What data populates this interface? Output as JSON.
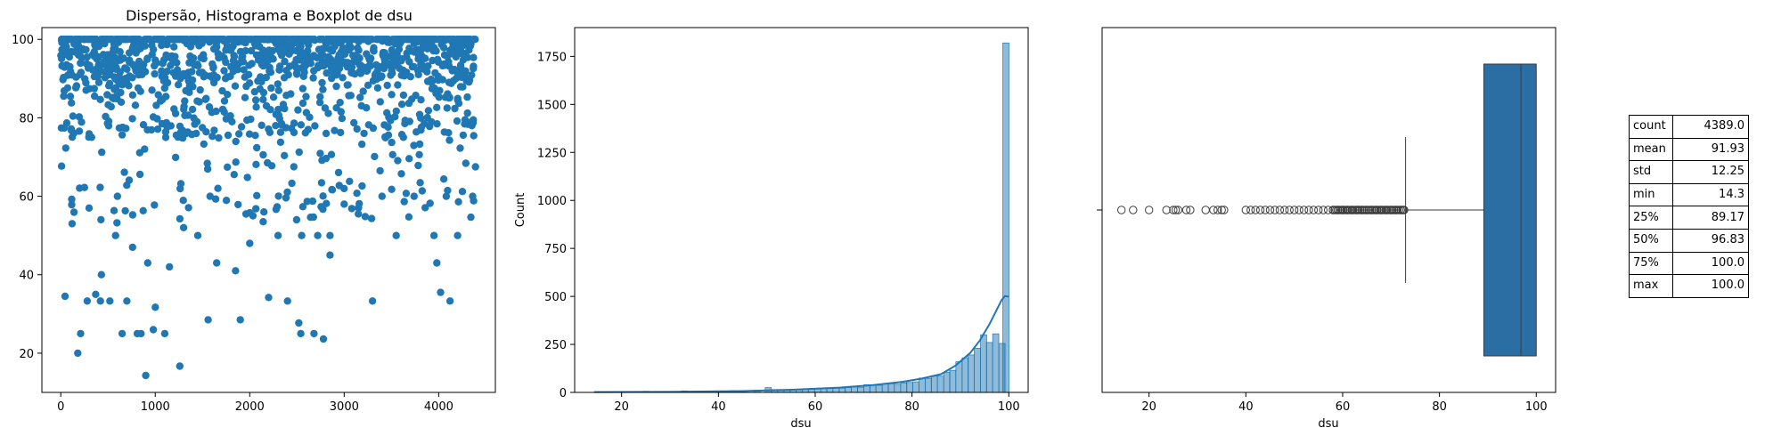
{
  "chart_data": [
    {
      "type": "scatter",
      "title": "Dispersão, Histograma e Boxplot de dsu",
      "xlabel": "",
      "ylabel": "",
      "xlim": [
        -200,
        4600
      ],
      "ylim": [
        10,
        103
      ],
      "xticks": [
        0,
        1000,
        2000,
        3000,
        4000
      ],
      "yticks": [
        20,
        40,
        60,
        80,
        100
      ],
      "color": "#1f77b4",
      "n_points": 4389,
      "value_range": [
        14.3,
        100.0
      ],
      "sample_points": [
        [
          45,
          34.5
        ],
        [
          180,
          20.0
        ],
        [
          210,
          25.0
        ],
        [
          280,
          33.3
        ],
        [
          370,
          35.0
        ],
        [
          420,
          33.3
        ],
        [
          520,
          33.3
        ],
        [
          650,
          25.0
        ],
        [
          700,
          33.3
        ],
        [
          810,
          25.0
        ],
        [
          850,
          25.0
        ],
        [
          900,
          14.3
        ],
        [
          980,
          26.0
        ],
        [
          1000,
          31.7
        ],
        [
          1100,
          25.0
        ],
        [
          1260,
          16.7
        ],
        [
          1560,
          28.5
        ],
        [
          1900,
          28.5
        ],
        [
          2200,
          34.2
        ],
        [
          2400,
          33.3
        ],
        [
          2520,
          27.7
        ],
        [
          2540,
          25.0
        ],
        [
          2680,
          25.0
        ],
        [
          2780,
          23.6
        ],
        [
          3300,
          33.3
        ],
        [
          3980,
          43.0
        ],
        [
          4020,
          35.5
        ],
        [
          4120,
          33.3
        ],
        [
          4200,
          50.0
        ],
        [
          4390,
          67.5
        ],
        [
          120,
          53.0
        ],
        [
          300,
          57.0
        ],
        [
          430,
          40.0
        ],
        [
          580,
          50.0
        ],
        [
          760,
          47.0
        ],
        [
          920,
          43.0
        ],
        [
          1150,
          42.0
        ],
        [
          1300,
          52.0
        ],
        [
          1450,
          50.0
        ],
        [
          1650,
          43.0
        ],
        [
          1850,
          41.0
        ],
        [
          2000,
          48.0
        ],
        [
          2150,
          56.0
        ],
        [
          2300,
          50.0
        ],
        [
          2550,
          50.0
        ],
        [
          2720,
          50.0
        ],
        [
          2850,
          45.0
        ],
        [
          3000,
          58.0
        ],
        [
          3150,
          55.5
        ],
        [
          3400,
          60.0
        ],
        [
          3550,
          50.0
        ],
        [
          3740,
          60.0
        ],
        [
          3950,
          50.0
        ],
        [
          4080,
          60.0
        ],
        [
          4360,
          60.0
        ],
        [
          3380,
          66.5
        ],
        [
          2870,
          61.7
        ],
        [
          2850,
          50.0
        ],
        [
          1580,
          60.0
        ],
        [
          600,
          60.0
        ]
      ]
    },
    {
      "type": "bar",
      "subtype": "histogram",
      "xlabel": "dsu",
      "ylabel": "Count",
      "xlim": [
        10.3,
        104
      ],
      "ylim": [
        0,
        1900
      ],
      "xticks": [
        20,
        40,
        60,
        80,
        100
      ],
      "yticks": [
        0,
        250,
        500,
        750,
        1000,
        1250,
        1500,
        1750
      ],
      "bin_range": [
        14.3,
        100.0
      ],
      "bin_width": 1.27,
      "color": "#1f77b4",
      "bins": [
        [
          15,
          2
        ],
        [
          20,
          3
        ],
        [
          25,
          6
        ],
        [
          30,
          5
        ],
        [
          33,
          8
        ],
        [
          35,
          6
        ],
        [
          40,
          8
        ],
        [
          43,
          9
        ],
        [
          45,
          10
        ],
        [
          48,
          12
        ],
        [
          50.3,
          25
        ],
        [
          51.6,
          15
        ],
        [
          52.9,
          14
        ],
        [
          54.2,
          14
        ],
        [
          55.4,
          14
        ],
        [
          56.7,
          16
        ],
        [
          58.0,
          17
        ],
        [
          59.2,
          20
        ],
        [
          60.5,
          19
        ],
        [
          61.8,
          21
        ],
        [
          63.0,
          20
        ],
        [
          64.3,
          22
        ],
        [
          65.6,
          22
        ],
        [
          66.8,
          25
        ],
        [
          68.1,
          28
        ],
        [
          69.4,
          27
        ],
        [
          70.7,
          40
        ],
        [
          71.9,
          38
        ],
        [
          73.2,
          37
        ],
        [
          74.5,
          45
        ],
        [
          75.7,
          45
        ],
        [
          77.0,
          43
        ],
        [
          78.3,
          50
        ],
        [
          79.5,
          52
        ],
        [
          80.8,
          55
        ],
        [
          82.1,
          75
        ],
        [
          83.4,
          73
        ],
        [
          84.6,
          87
        ],
        [
          85.9,
          85
        ],
        [
          87.2,
          105
        ],
        [
          88.4,
          115
        ],
        [
          89.7,
          160
        ],
        [
          91.0,
          180
        ],
        [
          92.2,
          195
        ],
        [
          93.5,
          230
        ],
        [
          94.8,
          300
        ],
        [
          96.0,
          260
        ],
        [
          97.3,
          305
        ],
        [
          98.6,
          255
        ],
        [
          99.4,
          1820
        ]
      ],
      "kde": [
        [
          14.3,
          2
        ],
        [
          30,
          3
        ],
        [
          45,
          7
        ],
        [
          55,
          14
        ],
        [
          65,
          25
        ],
        [
          72,
          38
        ],
        [
          78,
          55
        ],
        [
          82,
          72
        ],
        [
          86,
          95
        ],
        [
          89,
          140
        ],
        [
          92,
          205
        ],
        [
          94,
          270
        ],
        [
          96,
          355
        ],
        [
          97.5,
          430
        ],
        [
          98.5,
          480
        ],
        [
          99.2,
          502
        ],
        [
          100,
          498
        ]
      ]
    },
    {
      "type": "box",
      "xlabel": "dsu",
      "xlim": [
        10.3,
        104
      ],
      "xticks": [
        20,
        40,
        60,
        80,
        100
      ],
      "color": "#2b6ea3",
      "q1": 89.17,
      "median": 96.83,
      "q3": 100.0,
      "whisker_low": 73.0,
      "whisker_high": 100.0,
      "outliers": [
        14.3,
        16.7,
        20.0,
        23.6,
        25.0,
        25.5,
        26.0,
        27.7,
        28.5,
        31.7,
        33.3,
        34.2,
        35.0,
        35.5,
        40.0,
        41.0,
        42.0,
        43.0,
        44.0,
        45.0,
        46.0,
        47.0,
        48.0,
        49.0,
        50.0,
        51.0,
        52.0,
        53.0,
        54.0,
        55.0,
        56.0,
        57.0,
        58.0,
        59.0,
        60.0,
        61.0,
        62.0,
        63.0,
        64.0,
        65.0,
        66.0,
        67.0,
        68.0,
        69.0,
        70.0,
        71.0,
        72.0,
        72.5
      ]
    },
    {
      "type": "table",
      "rows": [
        {
          "key": "count",
          "value": "4389.0"
        },
        {
          "key": "mean",
          "value": "91.93"
        },
        {
          "key": "std",
          "value": "12.25"
        },
        {
          "key": "min",
          "value": "14.3"
        },
        {
          "key": "25%",
          "value": "89.17"
        },
        {
          "key": "50%",
          "value": "96.83"
        },
        {
          "key": "75%",
          "value": "100.0"
        },
        {
          "key": "max",
          "value": "100.0"
        }
      ]
    }
  ]
}
